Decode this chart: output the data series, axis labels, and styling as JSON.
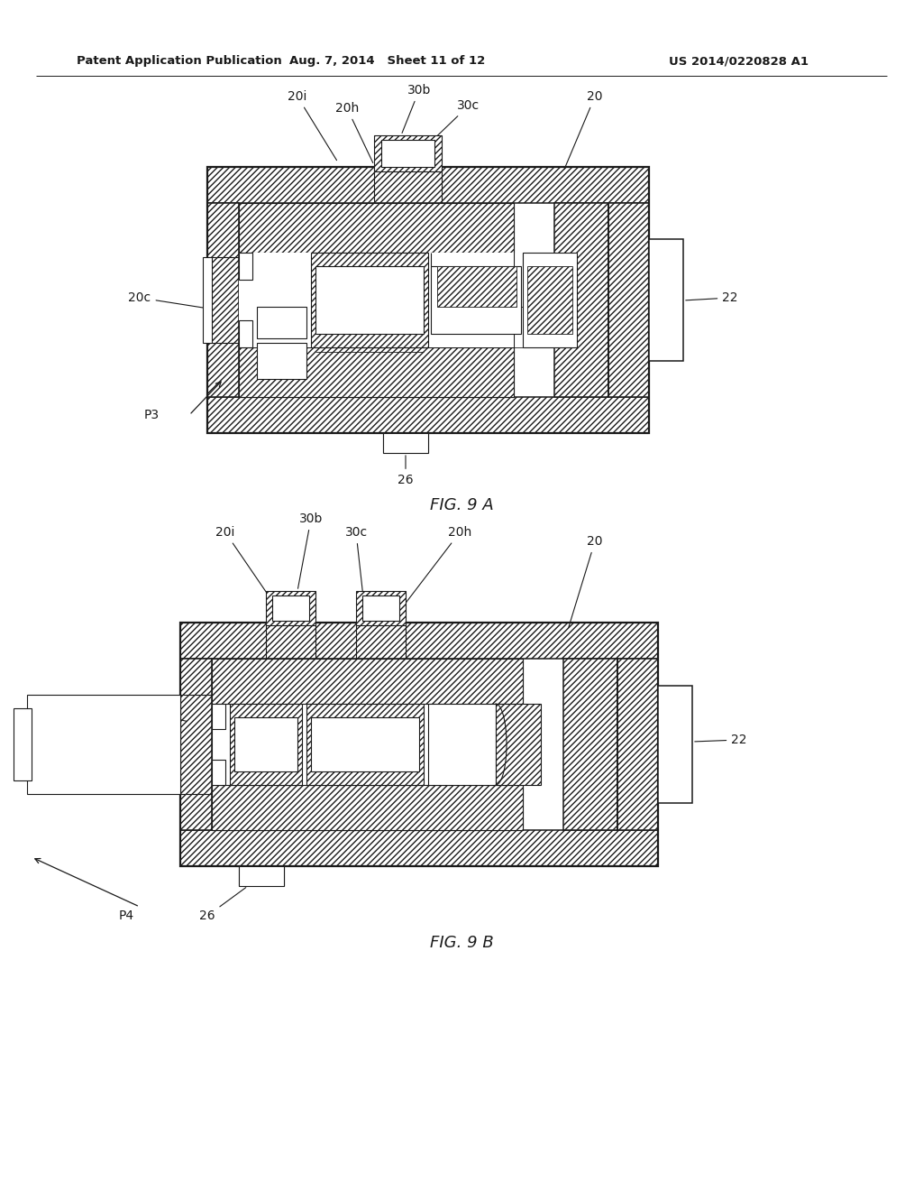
{
  "background_color": "#ffffff",
  "header_left": "Patent Application Publication",
  "header_center": "Aug. 7, 2014   Sheet 11 of 12",
  "header_right": "US 2014/0220828 A1",
  "fig_9a_caption": "FIG. 9 A",
  "fig_9b_caption": "FIG. 9 B",
  "line_color": "#1a1a1a"
}
